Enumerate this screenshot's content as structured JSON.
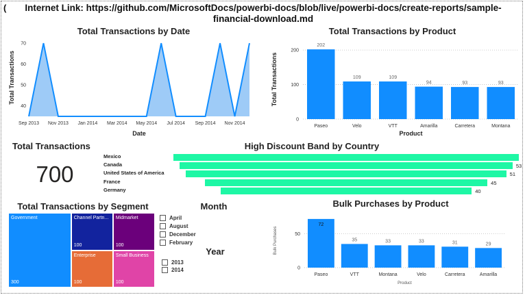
{
  "header": {
    "text": "Internet Link: https://github.com/MicrosoftDocs/powerbi-docs/blob/live/powerbi-docs/create-reports/sample-financial-download.md",
    "left_glyph": "("
  },
  "colors": {
    "bar": "#118dff",
    "area_fill": "#9ecbf7",
    "funnel": "#1ef7a5",
    "government": "#118dff",
    "channel": "#12239e",
    "midmarket": "#6b007b",
    "enterprise": "#e66c37",
    "small_business": "#e044a7"
  },
  "by_date": {
    "title": "Total Transactions by Date",
    "chart_data": {
      "type": "area",
      "title": "Total Transactions by Date",
      "xlabel": "Date",
      "ylabel": "Total Transactions",
      "x_ticks": [
        "Sep 2013",
        "Nov 2013",
        "Jan 2014",
        "Mar 2014",
        "May 2014",
        "Jul 2014",
        "Sep 2014",
        "Nov 2014"
      ],
      "y_ticks": [
        40,
        50,
        60,
        70
      ],
      "ylim": [
        35,
        72
      ],
      "x": [
        "Sep 2013",
        "Oct 2013",
        "Nov 2013",
        "Dec 2013",
        "Jan 2014",
        "Feb 2014",
        "Mar 2014",
        "Apr 2014",
        "May 2014",
        "Jun 2014",
        "Jul 2014",
        "Aug 2014",
        "Sep 2014",
        "Oct 2014",
        "Nov 2014",
        "Dec 2014"
      ],
      "values": [
        35,
        70,
        35,
        35,
        35,
        35,
        35,
        35,
        35,
        70,
        35,
        35,
        35,
        70,
        35,
        70
      ]
    }
  },
  "by_product": {
    "title": "Total Transactions by Product",
    "chart_data": {
      "type": "bar",
      "title": "Total Transactions by Product",
      "xlabel": "Product",
      "ylabel": "Total Transactions",
      "categories": [
        "Paseo",
        "Velo",
        "VTT",
        "Amarilla",
        "Carretera",
        "Montana"
      ],
      "values": [
        202,
        109,
        109,
        94,
        93,
        93
      ],
      "y_ticks": [
        0,
        100,
        200
      ],
      "ylim": [
        0,
        230
      ]
    }
  },
  "kpi": {
    "title": "Total Transactions",
    "value": "700"
  },
  "discount": {
    "title": "High Discount Band by Country",
    "chart_data": {
      "type": "funnel",
      "title": "High Discount Band by Country",
      "categories": [
        "Mexico",
        "Canada",
        "United States of America",
        "France",
        "Germany"
      ],
      "values": [
        55,
        53,
        51,
        45,
        40
      ],
      "value_labels": [
        "",
        "53",
        "51",
        "45",
        "40"
      ]
    }
  },
  "segment": {
    "title": "Total Transactions by Segment",
    "chart_data": {
      "type": "treemap",
      "title": "Total Transactions by Segment",
      "items": [
        {
          "label": "Government",
          "value": 300
        },
        {
          "label": "Channel Partn...",
          "value": 100
        },
        {
          "label": "Midmarket",
          "value": 100
        },
        {
          "label": "Enterprise",
          "value": 100
        },
        {
          "label": "Small Business",
          "value": 100
        }
      ]
    }
  },
  "month_slicer": {
    "title": "Month",
    "items": [
      "April",
      "August",
      "December",
      "February"
    ]
  },
  "year_slicer": {
    "title": "Year",
    "items": [
      "2013",
      "2014"
    ]
  },
  "bulk": {
    "title": "Bulk Purchases by Product",
    "chart_data": {
      "type": "bar",
      "title": "Bulk Purchases by Product",
      "xlabel": "Product",
      "ylabel": "Bulk Purchases",
      "categories": [
        "Paseo",
        "VTT",
        "Montana",
        "Velo",
        "Carretera",
        "Amarilla"
      ],
      "values": [
        72,
        35,
        33,
        33,
        31,
        29
      ],
      "y_ticks": [
        0,
        50
      ],
      "ylim": [
        0,
        80
      ]
    }
  }
}
